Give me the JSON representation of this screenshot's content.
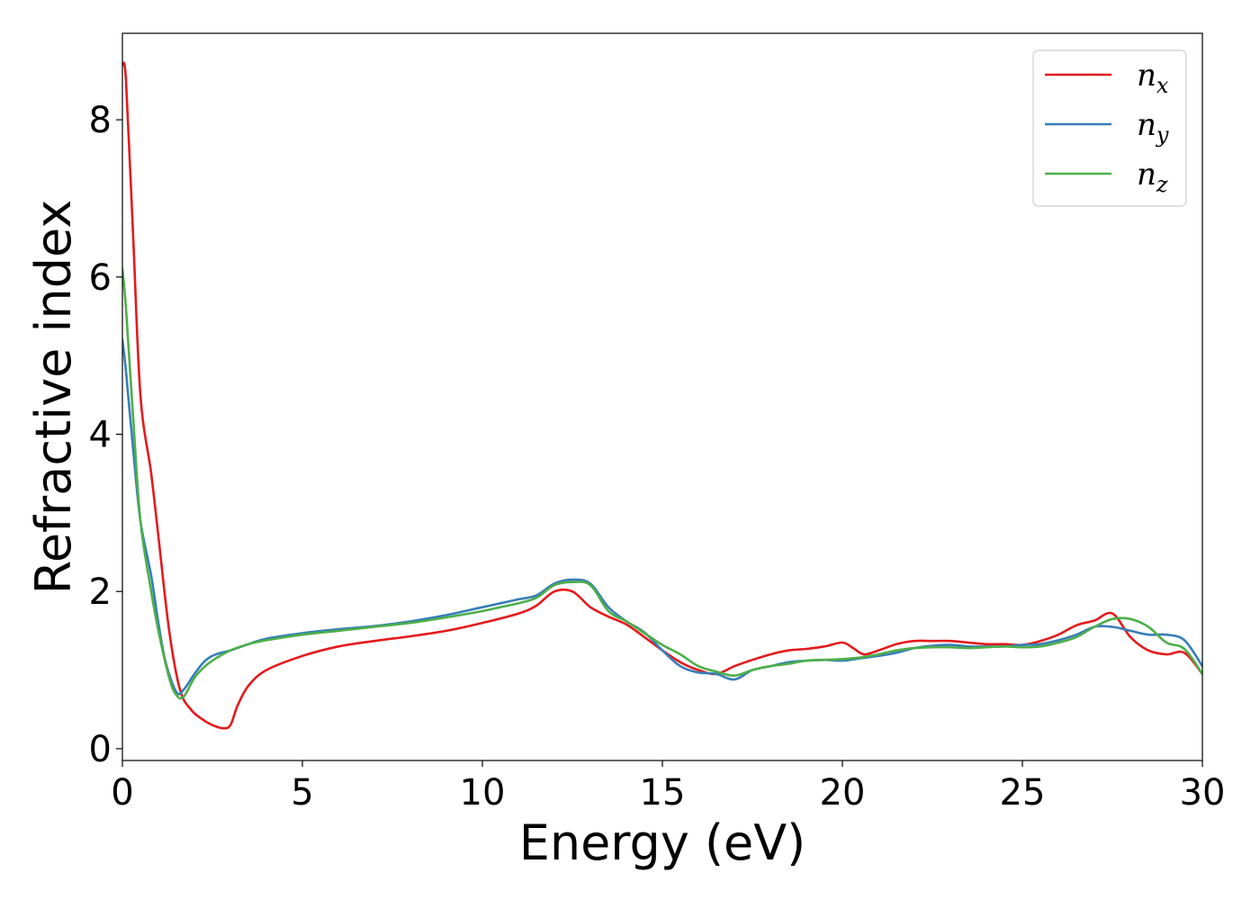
{
  "chart_data": {
    "type": "line",
    "xlabel": "Energy (eV)",
    "ylabel": "Refractive index",
    "xlim": [
      0,
      30
    ],
    "ylim": [
      -0.15,
      9.1
    ],
    "xticks": [
      0,
      5,
      10,
      15,
      20,
      25,
      30
    ],
    "xtick_labels": [
      "0",
      "5",
      "10",
      "15",
      "20",
      "25",
      "30"
    ],
    "yticks": [
      0,
      2,
      4,
      6,
      8
    ],
    "ytick_labels": [
      "0",
      "2",
      "4",
      "6",
      "8"
    ],
    "grid": false,
    "legend_position": "top-right",
    "series": [
      {
        "name": "n",
        "subscript": "x",
        "color": "#e41a1c",
        "x": [
          0,
          0.1,
          0.3,
          0.5,
          0.8,
          1.0,
          1.3,
          1.6,
          1.9,
          2.2,
          2.5,
          2.8,
          3.0,
          3.2,
          3.5,
          4.0,
          5.0,
          6.0,
          7.0,
          8.0,
          9.0,
          10.0,
          11.0,
          11.5,
          12.0,
          12.5,
          13.0,
          13.5,
          14.0,
          14.5,
          15.0,
          15.5,
          16.0,
          16.5,
          17.0,
          17.5,
          18.0,
          18.5,
          19.0,
          19.5,
          20.0,
          20.3,
          20.6,
          21.0,
          21.5,
          22.0,
          22.5,
          23.0,
          23.5,
          24.0,
          24.5,
          25.0,
          25.5,
          26.0,
          26.5,
          27.0,
          27.5,
          28.0,
          28.5,
          29.0,
          29.5,
          30.0
        ],
        "y": [
          8.7,
          8.5,
          6.5,
          4.5,
          3.5,
          2.7,
          1.5,
          0.75,
          0.5,
          0.38,
          0.3,
          0.26,
          0.3,
          0.55,
          0.8,
          1.0,
          1.18,
          1.3,
          1.37,
          1.43,
          1.5,
          1.6,
          1.72,
          1.82,
          2.0,
          2.0,
          1.8,
          1.68,
          1.58,
          1.42,
          1.25,
          1.1,
          1.0,
          0.95,
          1.05,
          1.13,
          1.2,
          1.25,
          1.27,
          1.3,
          1.35,
          1.28,
          1.2,
          1.25,
          1.33,
          1.37,
          1.37,
          1.37,
          1.35,
          1.33,
          1.33,
          1.32,
          1.37,
          1.45,
          1.57,
          1.63,
          1.72,
          1.42,
          1.25,
          1.2,
          1.22,
          0.95
        ]
      },
      {
        "name": "n",
        "subscript": "y",
        "color": "#377eb8",
        "x": [
          0,
          0.1,
          0.3,
          0.5,
          0.8,
          1.0,
          1.2,
          1.5,
          1.7,
          2.0,
          2.3,
          2.6,
          3.0,
          3.5,
          4.0,
          5.0,
          6.0,
          7.0,
          8.0,
          9.0,
          10.0,
          10.5,
          11.0,
          11.5,
          12.0,
          12.5,
          13.0,
          13.5,
          14.0,
          14.5,
          15.0,
          15.5,
          16.0,
          16.5,
          17.0,
          17.5,
          18.0,
          18.5,
          19.0,
          19.5,
          20.0,
          20.5,
          21.0,
          21.5,
          22.0,
          22.5,
          23.0,
          23.5,
          24.0,
          24.5,
          25.0,
          25.5,
          26.0,
          26.5,
          27.0,
          27.5,
          28.0,
          28.5,
          29.0,
          29.5,
          30.0
        ],
        "y": [
          5.2,
          4.8,
          3.8,
          2.9,
          2.2,
          1.6,
          1.1,
          0.72,
          0.75,
          0.95,
          1.12,
          1.2,
          1.25,
          1.33,
          1.4,
          1.47,
          1.52,
          1.56,
          1.62,
          1.7,
          1.8,
          1.85,
          1.9,
          1.95,
          2.1,
          2.15,
          2.1,
          1.8,
          1.62,
          1.48,
          1.25,
          1.05,
          0.97,
          0.95,
          0.88,
          1.0,
          1.05,
          1.1,
          1.12,
          1.13,
          1.12,
          1.15,
          1.18,
          1.22,
          1.28,
          1.31,
          1.32,
          1.3,
          1.3,
          1.3,
          1.32,
          1.33,
          1.38,
          1.45,
          1.55,
          1.55,
          1.5,
          1.45,
          1.45,
          1.38,
          1.05
        ]
      },
      {
        "name": "n",
        "subscript": "z",
        "color": "#4daf4a",
        "x": [
          0,
          0.1,
          0.3,
          0.5,
          0.8,
          1.0,
          1.3,
          1.5,
          1.7,
          2.0,
          2.3,
          2.6,
          3.0,
          3.5,
          4.0,
          5.0,
          6.0,
          7.0,
          8.0,
          9.0,
          10.0,
          10.5,
          11.0,
          11.5,
          12.0,
          12.5,
          13.0,
          13.5,
          14.0,
          14.5,
          15.0,
          15.5,
          16.0,
          16.5,
          17.0,
          17.5,
          18.0,
          18.5,
          19.0,
          19.5,
          20.0,
          20.5,
          21.0,
          21.5,
          22.0,
          22.5,
          23.0,
          23.5,
          24.0,
          24.5,
          25.0,
          25.5,
          26.0,
          26.5,
          27.0,
          27.5,
          28.0,
          28.5,
          29.0,
          29.5,
          30.0
        ],
        "y": [
          6.1,
          5.6,
          4.2,
          2.9,
          2.0,
          1.5,
          0.9,
          0.68,
          0.66,
          0.9,
          1.05,
          1.15,
          1.25,
          1.33,
          1.38,
          1.45,
          1.5,
          1.55,
          1.6,
          1.67,
          1.75,
          1.8,
          1.85,
          1.92,
          2.08,
          2.12,
          2.08,
          1.75,
          1.62,
          1.47,
          1.32,
          1.2,
          1.05,
          0.98,
          0.93,
          1.0,
          1.05,
          1.08,
          1.12,
          1.13,
          1.14,
          1.16,
          1.2,
          1.25,
          1.28,
          1.29,
          1.29,
          1.28,
          1.29,
          1.3,
          1.29,
          1.3,
          1.35,
          1.42,
          1.55,
          1.65,
          1.65,
          1.55,
          1.35,
          1.27,
          0.95
        ]
      }
    ]
  }
}
